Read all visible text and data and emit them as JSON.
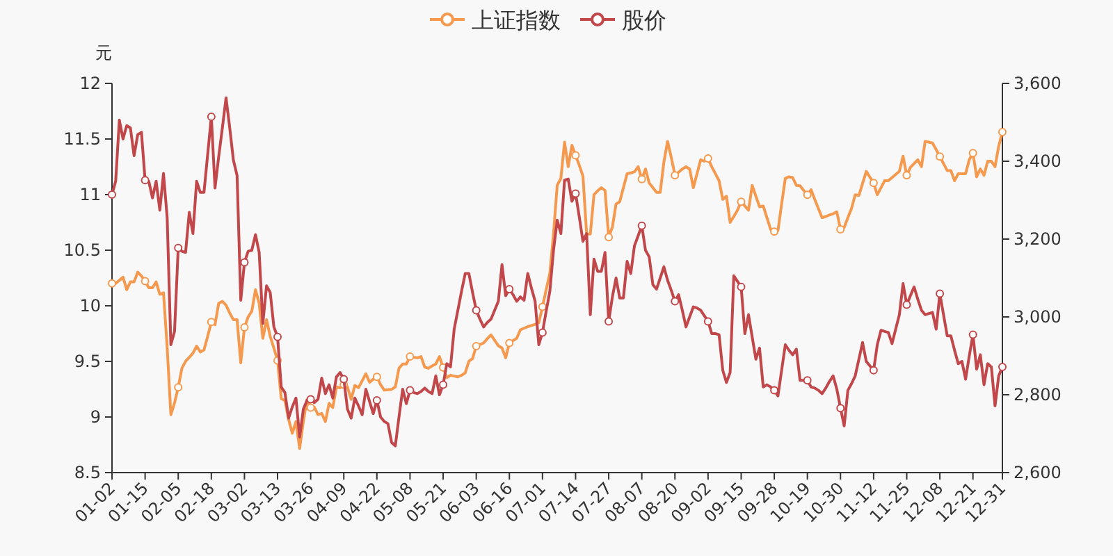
{
  "chart_data": {
    "type": "line",
    "ylabel": "元",
    "legend": "top",
    "line_style": "solid",
    "grid": false,
    "categories": [
      "01-02",
      null,
      null,
      null,
      null,
      null,
      null,
      null,
      null,
      "01-15",
      null,
      null,
      null,
      null,
      null,
      null,
      null,
      null,
      "02-05",
      null,
      null,
      null,
      null,
      null,
      null,
      null,
      null,
      "02-18",
      null,
      null,
      null,
      null,
      null,
      null,
      null,
      null,
      "03-02",
      null,
      null,
      null,
      null,
      null,
      null,
      null,
      null,
      "03-13",
      null,
      null,
      null,
      null,
      null,
      null,
      null,
      null,
      "03-26",
      null,
      null,
      null,
      null,
      null,
      null,
      null,
      null,
      "04-09",
      null,
      null,
      null,
      null,
      null,
      null,
      null,
      null,
      "04-22",
      null,
      null,
      null,
      null,
      null,
      null,
      null,
      null,
      "05-08",
      null,
      null,
      null,
      null,
      null,
      null,
      null,
      null,
      "05-21",
      null,
      null,
      null,
      null,
      null,
      null,
      null,
      null,
      "06-03",
      null,
      null,
      null,
      null,
      null,
      null,
      null,
      null,
      "06-16",
      null,
      null,
      null,
      null,
      null,
      null,
      null,
      null,
      "07-01",
      null,
      null,
      null,
      null,
      null,
      null,
      null,
      null,
      "07-14",
      null,
      null,
      null,
      null,
      null,
      null,
      null,
      null,
      "07-27",
      null,
      null,
      null,
      null,
      null,
      null,
      null,
      null,
      "08-07",
      null,
      null,
      null,
      null,
      null,
      null,
      null,
      null,
      "08-20",
      null,
      null,
      null,
      null,
      null,
      null,
      null,
      null,
      "09-02",
      null,
      null,
      null,
      null,
      null,
      null,
      null,
      null,
      "09-15",
      null,
      null,
      null,
      null,
      null,
      null,
      null,
      null,
      "09-28",
      null,
      null,
      null,
      null,
      null,
      null,
      null,
      null,
      "10-19",
      null,
      null,
      null,
      null,
      null,
      null,
      null,
      null,
      "10-30",
      null,
      null,
      null,
      null,
      null,
      null,
      null,
      null,
      "11-12",
      null,
      null,
      null,
      null,
      null,
      null,
      null,
      null,
      "11-25",
      null,
      null,
      null,
      null,
      null,
      null,
      null,
      null,
      "12-08",
      null,
      null,
      null,
      null,
      null,
      null,
      null,
      null,
      "12-21",
      null,
      null,
      null,
      null,
      null,
      null,
      null,
      "12-31"
    ],
    "ylim": [
      8.5,
      12
    ],
    "yticks": [
      8.5,
      9,
      9.5,
      10,
      10.5,
      11,
      11.5,
      12
    ],
    "y2lim": [
      2600,
      3600
    ],
    "y2ticks": [
      {
        "value": 2600,
        "label": "2,600"
      },
      {
        "value": 2800,
        "label": "2,800"
      },
      {
        "value": 3000,
        "label": "3,000"
      },
      {
        "value": 3200,
        "label": "3,200"
      },
      {
        "value": 3400,
        "label": "3,400"
      },
      {
        "value": 3600,
        "label": "3,600"
      }
    ],
    "series": [
      {
        "name": "上证指数",
        "color": "#f5994e",
        "axis": "y2",
        "values": [
          3086,
          3086,
          3094,
          3102,
          3070,
          3090,
          3090,
          3115,
          3105,
          3092,
          3075,
          3075,
          3090,
          3058,
          3062,
          2921,
          2749,
          2779,
          2819,
          2868,
          2886,
          2896,
          2907,
          2925,
          2910,
          2915,
          2950,
          2987,
          2980,
          3035,
          3040,
          3030,
          3010,
          2993,
          2993,
          2882,
          2973,
          3000,
          3015,
          3070,
          3035,
          2945,
          2993,
          2950,
          2920,
          2888,
          2790,
          2785,
          2737,
          2701,
          2731,
          2662,
          2731,
          2788,
          2767,
          2768,
          2749,
          2752,
          2731,
          2778,
          2767,
          2820,
          2818,
          2826,
          2820,
          2788,
          2824,
          2818,
          2836,
          2854,
          2832,
          2840,
          2846,
          2826,
          2812,
          2813,
          2814,
          2820,
          2868,
          2879,
          2879,
          2898,
          2896,
          2895,
          2898,
          2871,
          2868,
          2874,
          2879,
          2898,
          2870,
          2844,
          2850,
          2848,
          2846,
          2850,
          2856,
          2886,
          2893,
          2925,
          2929,
          2933,
          2944,
          2954,
          2940,
          2926,
          2920,
          2895,
          2933,
          2939,
          2945,
          2967,
          2971,
          2975,
          2978,
          2981,
          2985,
          3026,
          3070,
          3112,
          3213,
          3338,
          3356,
          3449,
          3386,
          3441,
          3415,
          3390,
          3362,
          3213,
          3213,
          3314,
          3324,
          3332,
          3325,
          3205,
          3231,
          3290,
          3296,
          3332,
          3368,
          3370,
          3373,
          3386,
          3354,
          3380,
          3344,
          3332,
          3320,
          3320,
          3398,
          3451,
          3410,
          3364,
          3372,
          3380,
          3386,
          3380,
          3332,
          3368,
          3404,
          3400,
          3407,
          3386,
          3368,
          3350,
          3302,
          3310,
          3243,
          3258,
          3274,
          3296,
          3285,
          3274,
          3338,
          3310,
          3283,
          3285,
          3255,
          3225,
          3219,
          3222,
          3290,
          3356,
          3360,
          3358,
          3338,
          3337,
          3325,
          3314,
          3327,
          3302,
          3278,
          3255,
          3258,
          3262,
          3265,
          3270,
          3225,
          3230,
          3255,
          3279,
          3314,
          3312,
          3343,
          3374,
          3359,
          3344,
          3314,
          3332,
          3350,
          3350,
          3358,
          3366,
          3374,
          3413,
          3364,
          3384,
          3394,
          3404,
          3386,
          3451,
          3449,
          3447,
          3430,
          3412,
          3394,
          3376,
          3376,
          3350,
          3368,
          3368,
          3368,
          3404,
          3421,
          3360,
          3380,
          3364,
          3400,
          3400,
          3386,
          3439,
          3475
        ]
      },
      {
        "name": "股价",
        "color": "#c2474a",
        "values": [
          11.0,
          11.12,
          11.67,
          11.5,
          11.62,
          11.6,
          11.35,
          11.54,
          11.56,
          11.13,
          11.12,
          10.97,
          11.12,
          10.86,
          11.19,
          10.79,
          9.65,
          9.77,
          10.52,
          10.49,
          10.48,
          10.84,
          10.65,
          11.12,
          11.02,
          11.02,
          11.36,
          11.7,
          11.06,
          11.34,
          11.6,
          11.87,
          11.6,
          11.31,
          11.17,
          10.05,
          10.39,
          10.49,
          10.5,
          10.64,
          10.48,
          9.84,
          10.18,
          10.12,
          9.81,
          9.72,
          9.27,
          9.22,
          8.99,
          9.09,
          9.17,
          8.82,
          9.07,
          9.15,
          9.16,
          9.13,
          9.16,
          9.35,
          9.21,
          9.29,
          9.17,
          9.36,
          9.4,
          9.34,
          9.07,
          8.99,
          9.17,
          9.1,
          9.02,
          9.25,
          9.14,
          9.03,
          9.15,
          9.0,
          8.96,
          8.94,
          8.77,
          8.74,
          9.0,
          9.25,
          9.12,
          9.24,
          9.22,
          9.21,
          9.23,
          9.26,
          9.23,
          9.21,
          9.37,
          9.2,
          9.29,
          9.48,
          9.45,
          9.79,
          9.96,
          10.13,
          10.29,
          10.29,
          10.12,
          9.96,
          9.88,
          9.81,
          9.85,
          9.88,
          9.96,
          10.04,
          10.37,
          10.09,
          10.15,
          10.1,
          10.04,
          10.08,
          10.05,
          10.29,
          10.16,
          10.04,
          9.65,
          9.76,
          9.95,
          10.13,
          10.5,
          10.77,
          10.65,
          11.13,
          11.14,
          10.94,
          11.01,
          10.8,
          10.58,
          10.65,
          9.92,
          10.42,
          10.31,
          10.31,
          10.48,
          9.86,
          10.08,
          10.25,
          10.07,
          10.07,
          10.4,
          10.29,
          10.54,
          10.63,
          10.72,
          10.5,
          10.44,
          10.19,
          10.15,
          10.25,
          10.35,
          10.23,
          10.14,
          10.04,
          10.1,
          9.96,
          9.81,
          9.9,
          9.99,
          9.98,
          9.96,
          9.91,
          9.86,
          9.75,
          9.75,
          9.74,
          9.42,
          9.31,
          9.4,
          10.27,
          10.22,
          10.17,
          9.75,
          9.92,
          9.72,
          9.52,
          9.62,
          9.27,
          9.29,
          9.27,
          9.24,
          9.19,
          9.42,
          9.65,
          9.6,
          9.56,
          9.61,
          9.33,
          9.33,
          9.33,
          9.27,
          9.26,
          9.24,
          9.21,
          9.26,
          9.32,
          9.37,
          9.25,
          9.08,
          8.92,
          9.24,
          9.3,
          9.37,
          9.52,
          9.67,
          9.5,
          9.46,
          9.42,
          9.65,
          9.78,
          9.77,
          9.76,
          9.66,
          9.79,
          9.92,
          10.2,
          10.01,
          10.09,
          10.17,
          10.06,
          9.96,
          9.92,
          9.93,
          9.94,
          9.79,
          10.11,
          9.92,
          9.73,
          9.73,
          9.6,
          9.48,
          9.5,
          9.34,
          9.55,
          9.74,
          9.43,
          9.56,
          9.29,
          9.48,
          9.45,
          9.1,
          9.37,
          9.45
        ]
      }
    ]
  }
}
